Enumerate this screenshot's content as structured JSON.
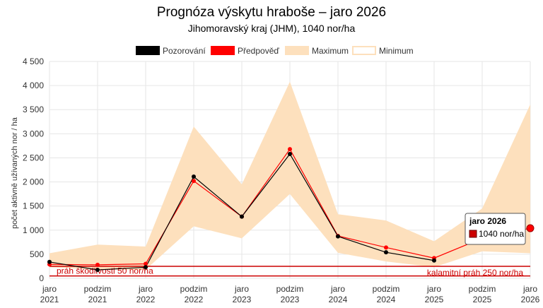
{
  "chart_data": {
    "type": "line",
    "title": "Prognóza výskytu hraboše – jaro 2026",
    "subtitle": "Jihomoravský kraj (JHM), 1040 nor/ha",
    "ylabel": "počet aktivně užívaných nor / ha",
    "ylim": [
      0,
      4500
    ],
    "yticks": [
      0,
      500,
      1000,
      1500,
      2000,
      2500,
      3000,
      3500,
      4000,
      4500
    ],
    "ytick_labels": [
      "0",
      "500",
      "1 000",
      "1 500",
      "2 000",
      "2 500",
      "3 000",
      "3 500",
      "4 000",
      "4 500"
    ],
    "categories": [
      [
        "jaro",
        "2021"
      ],
      [
        "podzim",
        "2021"
      ],
      [
        "jaro",
        "2022"
      ],
      [
        "podzim",
        "2022"
      ],
      [
        "jaro",
        "2023"
      ],
      [
        "podzim",
        "2023"
      ],
      [
        "jaro",
        "2024"
      ],
      [
        "podzim",
        "2024"
      ],
      [
        "jaro",
        "2025"
      ],
      [
        "podzim",
        "2025"
      ],
      [
        "jaro",
        "2026"
      ]
    ],
    "legend": [
      {
        "label": "Pozorování",
        "color": "#000000",
        "style": "solid"
      },
      {
        "label": "Předpověď",
        "color": "#ff0000",
        "style": "solid"
      },
      {
        "label": "Maximum",
        "color": "#fde0bd",
        "style": "solid"
      },
      {
        "label": "Minimum",
        "color": "#fde0bd",
        "style": "outline"
      }
    ],
    "series": [
      {
        "name": "Pozorování",
        "color": "#000000",
        "values": [
          340,
          175,
          230,
          2110,
          1280,
          2580,
          870,
          540,
          370,
          null,
          null
        ]
      },
      {
        "name": "Předpověď",
        "color": "#ff0000",
        "values": [
          290,
          280,
          300,
          2020,
          1280,
          2680,
          880,
          640,
          420,
          830,
          1040
        ]
      }
    ],
    "band": {
      "name": "Maximum / Minimum",
      "color": "#fde0bd",
      "max": [
        520,
        700,
        660,
        3150,
        1950,
        4080,
        1330,
        1200,
        770,
        1450,
        3610
      ],
      "min": [
        230,
        180,
        180,
        1080,
        830,
        1750,
        530,
        350,
        230,
        560,
        520
      ]
    },
    "thresholds": [
      {
        "label": "práh škodlivosti 50 nor/ha",
        "value": 50,
        "color": "#cc0000"
      },
      {
        "label": "kalamitní práh 250 nor/ha",
        "value": 250,
        "color": "#cc0000"
      }
    ],
    "tooltip": {
      "title": "jaro 2026",
      "value": "1040 nor/ha",
      "color": "#cc0000"
    },
    "grid": true,
    "legend_position": "top"
  }
}
